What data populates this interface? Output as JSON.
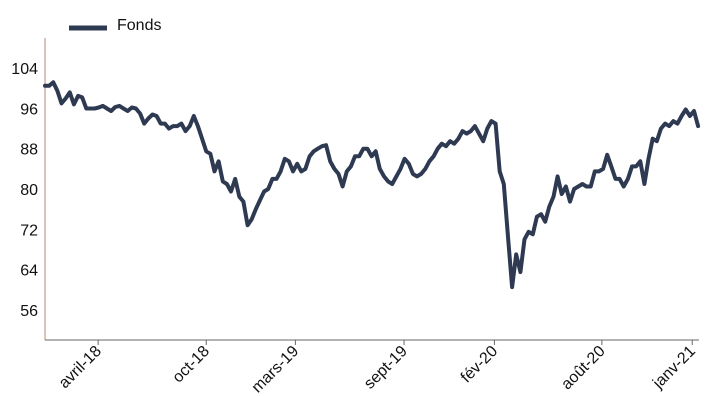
{
  "chart_data": {
    "type": "line",
    "title": "",
    "xlabel": "",
    "ylabel": "",
    "legend_position": "top-left",
    "grid": false,
    "ylim": [
      50,
      110
    ],
    "yticks": [
      56,
      64,
      72,
      80,
      88,
      96,
      104
    ],
    "xlim": [
      "2018-01-01",
      "2021-01-04"
    ],
    "xticks": [
      {
        "date": "2018-04-01",
        "label": "avril-18"
      },
      {
        "date": "2018-10-01",
        "label": "oct-18"
      },
      {
        "date": "2019-03-01",
        "label": "mars-19"
      },
      {
        "date": "2019-09-01",
        "label": "sept-19"
      },
      {
        "date": "2020-02-01",
        "label": "fév-20"
      },
      {
        "date": "2020-08-01",
        "label": "août-20"
      },
      {
        "date": "2021-01-01",
        "label": "janv-21"
      }
    ],
    "series": [
      {
        "name": "Fonds",
        "color": "#2e3a52",
        "points": [
          [
            "2018-01-01",
            100.5
          ],
          [
            "2018-01-08",
            100.5
          ],
          [
            "2018-01-15",
            101.2
          ],
          [
            "2018-01-22",
            99.5
          ],
          [
            "2018-01-29",
            97.0
          ],
          [
            "2018-02-05",
            98.0
          ],
          [
            "2018-02-12",
            99.2
          ],
          [
            "2018-02-19",
            96.8
          ],
          [
            "2018-02-26",
            98.5
          ],
          [
            "2018-03-05",
            98.2
          ],
          [
            "2018-03-12",
            96.0
          ],
          [
            "2018-03-19",
            96.0
          ],
          [
            "2018-03-26",
            96.0
          ],
          [
            "2018-04-02",
            96.2
          ],
          [
            "2018-04-09",
            96.5
          ],
          [
            "2018-04-16",
            96.0
          ],
          [
            "2018-04-23",
            95.5
          ],
          [
            "2018-04-30",
            96.3
          ],
          [
            "2018-05-07",
            96.5
          ],
          [
            "2018-05-14",
            96.0
          ],
          [
            "2018-05-21",
            95.5
          ],
          [
            "2018-05-28",
            96.2
          ],
          [
            "2018-06-04",
            96.0
          ],
          [
            "2018-06-11",
            95.0
          ],
          [
            "2018-06-18",
            93.0
          ],
          [
            "2018-06-25",
            94.0
          ],
          [
            "2018-07-02",
            94.8
          ],
          [
            "2018-07-09",
            94.5
          ],
          [
            "2018-07-16",
            93.0
          ],
          [
            "2018-07-23",
            93.0
          ],
          [
            "2018-07-30",
            92.0
          ],
          [
            "2018-08-06",
            92.5
          ],
          [
            "2018-08-13",
            92.5
          ],
          [
            "2018-08-20",
            93.0
          ],
          [
            "2018-08-27",
            91.5
          ],
          [
            "2018-09-03",
            92.5
          ],
          [
            "2018-09-10",
            94.5
          ],
          [
            "2018-09-17",
            92.5
          ],
          [
            "2018-09-24",
            90.0
          ],
          [
            "2018-10-01",
            87.5
          ],
          [
            "2018-10-08",
            87.0
          ],
          [
            "2018-10-15",
            83.5
          ],
          [
            "2018-10-22",
            85.5
          ],
          [
            "2018-10-29",
            81.5
          ],
          [
            "2018-11-05",
            81.0
          ],
          [
            "2018-11-12",
            79.5
          ],
          [
            "2018-11-19",
            82.0
          ],
          [
            "2018-11-26",
            78.5
          ],
          [
            "2018-12-03",
            77.5
          ],
          [
            "2018-12-10",
            72.8
          ],
          [
            "2018-12-17",
            74.0
          ],
          [
            "2018-12-24",
            76.0
          ],
          [
            "2018-12-31",
            77.8
          ],
          [
            "2019-01-07",
            79.5
          ],
          [
            "2019-01-14",
            80.0
          ],
          [
            "2019-01-21",
            82.0
          ],
          [
            "2019-01-28",
            82.0
          ],
          [
            "2019-02-04",
            83.5
          ],
          [
            "2019-02-11",
            86.0
          ],
          [
            "2019-02-18",
            85.5
          ],
          [
            "2019-02-25",
            83.5
          ],
          [
            "2019-03-04",
            85.0
          ],
          [
            "2019-03-11",
            83.5
          ],
          [
            "2019-03-18",
            84.0
          ],
          [
            "2019-03-25",
            86.5
          ],
          [
            "2019-04-01",
            87.5
          ],
          [
            "2019-04-08",
            88.0
          ],
          [
            "2019-04-15",
            88.5
          ],
          [
            "2019-04-22",
            88.7
          ],
          [
            "2019-04-29",
            85.5
          ],
          [
            "2019-05-06",
            84.0
          ],
          [
            "2019-05-13",
            83.0
          ],
          [
            "2019-05-20",
            80.5
          ],
          [
            "2019-05-27",
            83.5
          ],
          [
            "2019-06-03",
            84.5
          ],
          [
            "2019-06-10",
            86.5
          ],
          [
            "2019-06-17",
            86.5
          ],
          [
            "2019-06-24",
            88.0
          ],
          [
            "2019-07-01",
            88.0
          ],
          [
            "2019-07-08",
            86.5
          ],
          [
            "2019-07-15",
            87.5
          ],
          [
            "2019-07-22",
            84.0
          ],
          [
            "2019-07-29",
            82.5
          ],
          [
            "2019-08-05",
            81.5
          ],
          [
            "2019-08-12",
            81.0
          ],
          [
            "2019-08-19",
            82.5
          ],
          [
            "2019-08-26",
            84.0
          ],
          [
            "2019-09-02",
            86.0
          ],
          [
            "2019-09-09",
            85.0
          ],
          [
            "2019-09-16",
            83.0
          ],
          [
            "2019-09-23",
            82.5
          ],
          [
            "2019-09-30",
            83.0
          ],
          [
            "2019-10-07",
            84.0
          ],
          [
            "2019-10-14",
            85.5
          ],
          [
            "2019-10-21",
            86.5
          ],
          [
            "2019-10-28",
            88.0
          ],
          [
            "2019-11-04",
            89.0
          ],
          [
            "2019-11-11",
            88.5
          ],
          [
            "2019-11-18",
            89.5
          ],
          [
            "2019-11-25",
            89.0
          ],
          [
            "2019-12-02",
            90.0
          ],
          [
            "2019-12-09",
            91.5
          ],
          [
            "2019-12-16",
            91.0
          ],
          [
            "2019-12-23",
            91.5
          ],
          [
            "2019-12-30",
            92.5
          ],
          [
            "2020-01-06",
            91.0
          ],
          [
            "2020-01-13",
            89.5
          ],
          [
            "2020-01-20",
            92.0
          ],
          [
            "2020-01-27",
            93.5
          ],
          [
            "2020-02-03",
            93.0
          ],
          [
            "2020-02-10",
            83.5
          ],
          [
            "2020-02-17",
            81.0
          ],
          [
            "2020-02-24",
            70.5
          ],
          [
            "2020-03-02",
            60.5
          ],
          [
            "2020-03-09",
            67.0
          ],
          [
            "2020-03-16",
            63.5
          ],
          [
            "2020-03-23",
            70.0
          ],
          [
            "2020-03-30",
            71.5
          ],
          [
            "2020-04-06",
            71.0
          ],
          [
            "2020-04-13",
            74.5
          ],
          [
            "2020-04-20",
            75.0
          ],
          [
            "2020-04-27",
            73.5
          ],
          [
            "2020-05-04",
            76.5
          ],
          [
            "2020-05-11",
            78.5
          ],
          [
            "2020-05-18",
            82.5
          ],
          [
            "2020-05-25",
            79.0
          ],
          [
            "2020-06-01",
            80.5
          ],
          [
            "2020-06-08",
            77.5
          ],
          [
            "2020-06-15",
            80.0
          ],
          [
            "2020-06-22",
            80.5
          ],
          [
            "2020-06-29",
            81.0
          ],
          [
            "2020-07-06",
            80.5
          ],
          [
            "2020-07-13",
            80.5
          ],
          [
            "2020-07-20",
            83.5
          ],
          [
            "2020-07-27",
            83.5
          ],
          [
            "2020-08-03",
            84.0
          ],
          [
            "2020-08-10",
            86.8
          ],
          [
            "2020-08-17",
            84.5
          ],
          [
            "2020-08-24",
            82.0
          ],
          [
            "2020-08-31",
            82.0
          ],
          [
            "2020-09-07",
            80.5
          ],
          [
            "2020-09-14",
            82.0
          ],
          [
            "2020-09-21",
            84.5
          ],
          [
            "2020-09-28",
            84.5
          ],
          [
            "2020-10-05",
            85.5
          ],
          [
            "2020-10-12",
            81.0
          ],
          [
            "2020-10-19",
            86.0
          ],
          [
            "2020-10-26",
            90.0
          ],
          [
            "2020-11-02",
            89.5
          ],
          [
            "2020-11-09",
            92.0
          ],
          [
            "2020-11-16",
            93.0
          ],
          [
            "2020-11-23",
            92.5
          ],
          [
            "2020-11-30",
            93.5
          ],
          [
            "2020-12-07",
            93.0
          ],
          [
            "2020-12-14",
            94.5
          ],
          [
            "2020-12-21",
            95.8
          ],
          [
            "2020-12-28",
            94.5
          ],
          [
            "2021-01-04",
            95.5
          ],
          [
            "2021-01-11",
            92.5
          ]
        ]
      }
    ]
  }
}
